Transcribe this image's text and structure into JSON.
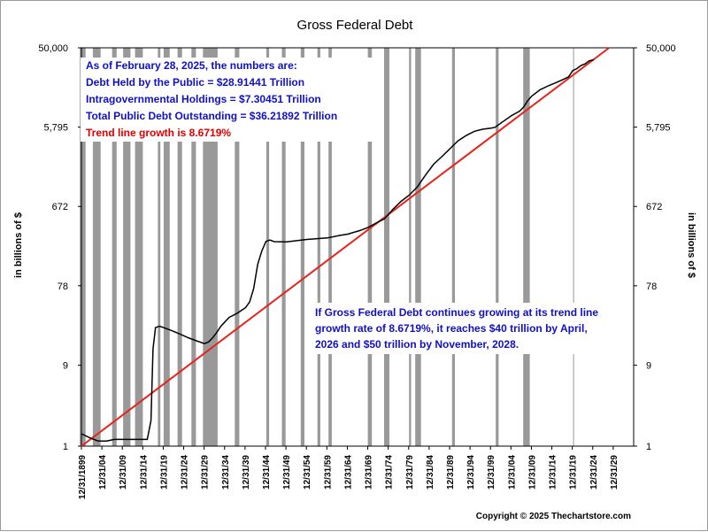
{
  "title": "Gross Federal Debt",
  "copyright": "Copyright © 2025 Thechartstore.com",
  "info_box": {
    "lines": [
      "As of February 28, 2025, the numbers are:",
      "Debt Held by the Public = $28.91441 Trillion",
      "Intragovernmental Holdings = $7.30451 Trillion",
      "Total Public Debt Outstanding = $36.21892 Trillion"
    ],
    "trend": "Trend line growth is 8.6719%"
  },
  "forecast_note": "If Gross Federal Debt continues growing at its trend line growth rate of 8.6719%, it reaches $40 trillion by April, 2026 and $50 trillion by November, 2028.",
  "colors": {
    "debt_line": "#000000",
    "trend_line": "#e8231a",
    "recession_band": "#999999",
    "text_blue": "#1010c8",
    "text_red": "#e00000"
  },
  "chart_data": {
    "type": "line",
    "title": "Gross Federal Debt",
    "ylabel": "in billions of $",
    "y_scale": "log",
    "ylim": [
      1,
      50000
    ],
    "y_ticks": [
      1,
      9,
      78,
      672,
      5795,
      50000
    ],
    "y_tick_labels": [
      "1",
      "9",
      "78",
      "672",
      "5,795",
      "50,000"
    ],
    "x_range": [
      "1899-12-31",
      "2034-12-31"
    ],
    "x_tick_labels": [
      "12/31/1899",
      "12/31/04",
      "12/31/09",
      "12/31/14",
      "12/31/19",
      "12/31/24",
      "12/31/29",
      "12/31/34",
      "12/31/39",
      "12/31/44",
      "12/31/49",
      "12/31/54",
      "12/31/59",
      "12/31/64",
      "12/31/69",
      "12/31/74",
      "12/31/79",
      "12/31/84",
      "12/31/89",
      "12/31/94",
      "12/31/99",
      "12/31/04",
      "12/31/09",
      "12/31/14",
      "12/31/19",
      "12/31/24",
      "12/31/29"
    ],
    "grid": false,
    "recession_shading": [
      [
        1899.5,
        1900.9
      ],
      [
        1902.7,
        1904.6
      ],
      [
        1907.4,
        1908.5
      ],
      [
        1910.1,
        1911.9
      ],
      [
        1913.0,
        1914.9
      ],
      [
        1918.6,
        1919.2
      ],
      [
        1920.0,
        1921.5
      ],
      [
        1923.4,
        1924.5
      ],
      [
        1926.8,
        1927.9
      ],
      [
        1929.6,
        1933.2
      ],
      [
        1937.4,
        1938.5
      ],
      [
        1945.1,
        1945.8
      ],
      [
        1948.9,
        1949.8
      ],
      [
        1953.5,
        1954.4
      ],
      [
        1957.6,
        1958.3
      ],
      [
        1960.3,
        1961.1
      ],
      [
        1969.9,
        1970.9
      ],
      [
        1973.9,
        1975.2
      ],
      [
        1980.0,
        1980.5
      ],
      [
        1981.5,
        1982.9
      ],
      [
        1990.5,
        1991.2
      ],
      [
        2001.2,
        2001.9
      ],
      [
        2007.9,
        2009.5
      ],
      [
        2020.1,
        2020.3
      ]
    ],
    "series": [
      {
        "type": "line",
        "values": [
          [
            1899.9,
            1.4
          ],
          [
            1902,
            1.25
          ],
          [
            1904,
            1.15
          ],
          [
            1906,
            1.15
          ],
          [
            1908,
            1.2
          ],
          [
            1910,
            1.2
          ],
          [
            1912,
            1.2
          ],
          [
            1914,
            1.2
          ],
          [
            1915,
            1.2
          ],
          [
            1916,
            1.2
          ],
          [
            1916.9,
            2.0
          ],
          [
            1917.4,
            14
          ],
          [
            1918,
            25
          ],
          [
            1919,
            26
          ],
          [
            1920,
            25
          ],
          [
            1922,
            23
          ],
          [
            1924,
            21
          ],
          [
            1926,
            19
          ],
          [
            1928,
            17.5
          ],
          [
            1930,
            16.2
          ],
          [
            1931,
            17
          ],
          [
            1932,
            19
          ],
          [
            1933,
            22
          ],
          [
            1934,
            26
          ],
          [
            1936,
            33
          ],
          [
            1938,
            37
          ],
          [
            1940,
            43
          ],
          [
            1941,
            50
          ],
          [
            1942,
            72
          ],
          [
            1943,
            140
          ],
          [
            1944,
            200
          ],
          [
            1945,
            260
          ],
          [
            1946,
            270
          ],
          [
            1947,
            258
          ],
          [
            1950,
            257
          ],
          [
            1955,
            274
          ],
          [
            1960,
            286
          ],
          [
            1963,
            306
          ],
          [
            1965,
            317
          ],
          [
            1968,
            350
          ],
          [
            1970,
            380
          ],
          [
            1972,
            430
          ],
          [
            1974,
            480
          ],
          [
            1976,
            620
          ],
          [
            1978,
            770
          ],
          [
            1980,
            910
          ],
          [
            1982,
            1140
          ],
          [
            1984,
            1570
          ],
          [
            1986,
            2120
          ],
          [
            1988,
            2600
          ],
          [
            1990,
            3230
          ],
          [
            1992,
            4000
          ],
          [
            1994,
            4640
          ],
          [
            1996,
            5180
          ],
          [
            1998,
            5480
          ],
          [
            2000,
            5630
          ],
          [
            2001,
            5770
          ],
          [
            2003,
            6760
          ],
          [
            2005,
            7900
          ],
          [
            2007,
            8950
          ],
          [
            2008,
            10000
          ],
          [
            2009,
            11900
          ],
          [
            2010,
            13500
          ],
          [
            2012,
            16000
          ],
          [
            2014,
            17800
          ],
          [
            2016,
            19500
          ],
          [
            2018,
            21500
          ],
          [
            2019,
            22700
          ],
          [
            2020,
            26900
          ],
          [
            2021,
            28400
          ],
          [
            2022,
            30900
          ],
          [
            2023,
            32300
          ],
          [
            2024,
            35000
          ],
          [
            2025.17,
            36219
          ]
        ]
      },
      {
        "type": "line",
        "values": [
          [
            1899.9,
            1.0
          ],
          [
            2028.9,
            50000
          ]
        ]
      }
    ]
  }
}
